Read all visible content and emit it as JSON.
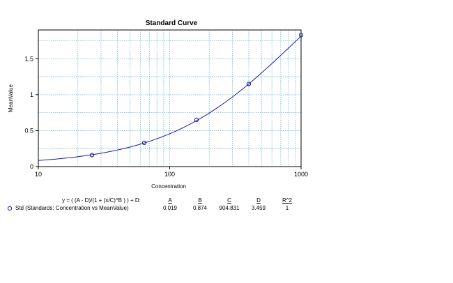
{
  "chart_data": {
    "type": "scatter",
    "title": "Standard Curve",
    "xlabel": "Concentration",
    "ylabel": "MeanValue",
    "xscale": "log",
    "xlim": [
      10,
      1000
    ],
    "ylim": [
      0,
      1.9
    ],
    "x_ticks": [
      "10",
      "100",
      "1000"
    ],
    "y_ticks": [
      "0",
      "0.5",
      "1",
      "1.5"
    ],
    "grid": true,
    "series": [
      {
        "name": "Std (Standards: Concentration vs MeanValue)",
        "color": "#1a1aa6",
        "x": [
          25.6,
          64,
          160,
          400,
          1000
        ],
        "y": [
          0.16,
          0.33,
          0.65,
          1.15,
          1.83
        ]
      }
    ],
    "fit": {
      "equation": "y = ( (A - D)/(1 + (x/C)^B ) ) + D:",
      "A": 0.019,
      "B": 0.874,
      "C": 904.831,
      "D": 3.459,
      "R2": 1
    }
  },
  "table": {
    "equation": "y = ( (A - D)/(1 + (x/C)^B ) ) + D:",
    "headers": [
      "A",
      "B",
      "C",
      "D",
      "R^2"
    ],
    "row_label": "Std (Standards: Concentration vs MeanValue)",
    "values": [
      "0.019",
      "0.874",
      "904.831",
      "3.459",
      "1"
    ]
  }
}
